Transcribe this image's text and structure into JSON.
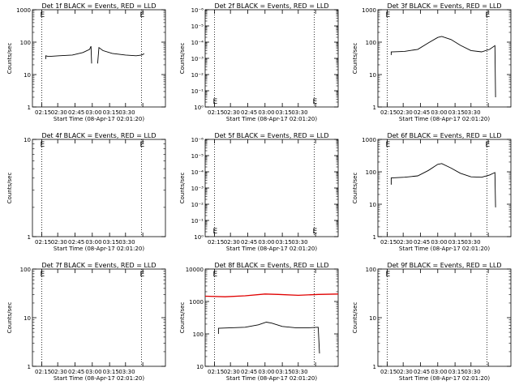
{
  "figure": {
    "xaxis_label": "Start Time (08-Apr-17 02:01:20)",
    "ylabel": "Counts/sec"
  },
  "chart_data": [
    {
      "type": "line",
      "title": "Det 1f BLACK = Events, RED = LLD",
      "scale": "log",
      "ylim": [
        1,
        1000
      ],
      "yticks": [
        "1",
        "10",
        "100",
        "1000"
      ],
      "xticks": [
        "02:15",
        "02:30",
        "02:45",
        "03:00",
        "03:15",
        "03:30"
      ],
      "markers": [
        "E",
        "E"
      ],
      "marker_pos": "top",
      "series": [
        {
          "color": "#000000",
          "values": [
            [
              0.1,
              30
            ],
            [
              0.1,
              38
            ],
            [
              0.12,
              36
            ],
            [
              0.2,
              38
            ],
            [
              0.3,
              40
            ],
            [
              0.38,
              48
            ],
            [
              0.43,
              60
            ],
            [
              0.44,
              75
            ],
            [
              0.445,
              22
            ],
            "gap",
            [
              0.49,
              22
            ],
            [
              0.5,
              68
            ],
            [
              0.53,
              55
            ],
            [
              0.6,
              45
            ],
            [
              0.7,
              40
            ],
            [
              0.78,
              38
            ],
            [
              0.82,
              40
            ],
            [
              0.84,
              44
            ]
          ]
        }
      ]
    },
    {
      "type": "line",
      "title": "Det 2f BLACK = Events, RED = LLD",
      "scale": "log",
      "ylim": [
        1,
        1000000
      ],
      "yticks": [
        "10⁰",
        "10⁻¹",
        "10⁻²",
        "10⁻³",
        "10⁻⁴",
        "10⁻⁵",
        "10⁻⁶"
      ],
      "xticks": [
        "02:15",
        "02:30",
        "02:45",
        "03:00",
        "03:15",
        "03:30"
      ],
      "markers": [
        "E",
        "E"
      ],
      "marker_pos": "bottom",
      "series": []
    },
    {
      "type": "line",
      "title": "Det 3f BLACK = Events, RED = LLD",
      "scale": "log",
      "ylim": [
        1,
        1000
      ],
      "yticks": [
        "1",
        "10",
        "100",
        "1000"
      ],
      "xticks": [
        "02:15",
        "02:30",
        "02:45",
        "03:00",
        "03:15",
        "03:30"
      ],
      "markers": [
        "E",
        "E"
      ],
      "marker_pos": "top",
      "series": [
        {
          "color": "#000000",
          "values": [
            [
              0.1,
              40
            ],
            [
              0.1,
              50
            ],
            [
              0.2,
              52
            ],
            [
              0.3,
              60
            ],
            [
              0.38,
              95
            ],
            [
              0.45,
              140
            ],
            [
              0.48,
              150
            ],
            [
              0.55,
              120
            ],
            [
              0.62,
              80
            ],
            [
              0.7,
              55
            ],
            [
              0.78,
              50
            ],
            [
              0.84,
              60
            ],
            [
              0.88,
              78
            ],
            [
              0.885,
              2
            ]
          ]
        }
      ]
    },
    {
      "type": "line",
      "title": "Det 4f BLACK = Events, RED = LLD",
      "scale": "log",
      "ylim": [
        1,
        10
      ],
      "yticks": [
        "1",
        "10"
      ],
      "xticks": [
        "02:15",
        "02:30",
        "02:45",
        "03:00",
        "03:15",
        "03:30"
      ],
      "markers": [
        "E",
        "E"
      ],
      "marker_pos": "top",
      "series": []
    },
    {
      "type": "line",
      "title": "Det 5f BLACK = Events, RED = LLD",
      "scale": "log",
      "ylim": [
        1,
        1000000
      ],
      "yticks": [
        "10⁰",
        "10⁻¹",
        "10⁻²",
        "10⁻³",
        "10⁻⁴",
        "10⁻⁵",
        "10⁻⁶"
      ],
      "xticks": [
        "02:15",
        "02:30",
        "02:45",
        "03:00",
        "03:15",
        "03:30"
      ],
      "markers": [
        "E",
        "E"
      ],
      "marker_pos": "bottom",
      "series": []
    },
    {
      "type": "line",
      "title": "Det 6f BLACK = Events, RED = LLD",
      "scale": "log",
      "ylim": [
        1,
        1000
      ],
      "yticks": [
        "1",
        "10",
        "100",
        "1000"
      ],
      "xticks": [
        "02:15",
        "02:30",
        "02:45",
        "03:00",
        "03:15",
        "03:30"
      ],
      "markers": [
        "E",
        "E"
      ],
      "marker_pos": "top",
      "series": [
        {
          "color": "#000000",
          "values": [
            [
              0.1,
              40
            ],
            [
              0.1,
              65
            ],
            [
              0.2,
              68
            ],
            [
              0.3,
              75
            ],
            [
              0.38,
              110
            ],
            [
              0.45,
              170
            ],
            [
              0.48,
              180
            ],
            [
              0.55,
              130
            ],
            [
              0.62,
              90
            ],
            [
              0.7,
              70
            ],
            [
              0.78,
              68
            ],
            [
              0.84,
              80
            ],
            [
              0.88,
              95
            ],
            [
              0.885,
              8
            ]
          ]
        }
      ]
    },
    {
      "type": "line",
      "title": "Det 7f BLACK = Events, RED = LLD",
      "scale": "log",
      "ylim": [
        1,
        100
      ],
      "yticks": [
        "1",
        "10",
        "100"
      ],
      "xticks": [
        "02:15",
        "02:30",
        "02:45",
        "03:00",
        "03:15",
        "03:30"
      ],
      "markers": [
        "E",
        "E"
      ],
      "marker_pos": "top",
      "series": []
    },
    {
      "type": "line",
      "title": "Det 8f BLACK = Events, RED = LLD",
      "scale": "log",
      "ylim": [
        10,
        10000
      ],
      "yticks": [
        "10",
        "100",
        "1000",
        "10000"
      ],
      "xticks": [
        "02:15",
        "02:30",
        "02:45",
        "03:00",
        "03:15",
        "03:30"
      ],
      "markers": [
        "E"
      ],
      "marker_pos": "top",
      "series": [
        {
          "color": "#e00000",
          "values": [
            [
              0.0,
              1450
            ],
            [
              0.15,
              1400
            ],
            [
              0.3,
              1500
            ],
            [
              0.45,
              1700
            ],
            [
              0.55,
              1650
            ],
            [
              0.7,
              1550
            ],
            [
              0.85,
              1650
            ],
            [
              1.0,
              1700
            ]
          ]
        },
        {
          "color": "#000000",
          "values": [
            [
              0.1,
              100
            ],
            [
              0.1,
              150
            ],
            [
              0.2,
              155
            ],
            [
              0.3,
              160
            ],
            [
              0.4,
              190
            ],
            [
              0.46,
              230
            ],
            [
              0.5,
              215
            ],
            [
              0.58,
              170
            ],
            [
              0.68,
              155
            ],
            [
              0.78,
              155
            ],
            [
              0.85,
              160
            ],
            [
              0.86,
              25
            ]
          ]
        }
      ]
    },
    {
      "type": "line",
      "title": "Det 9f BLACK = Events, RED = LLD",
      "scale": "log",
      "ylim": [
        1,
        100
      ],
      "yticks": [
        "1",
        "10",
        "100"
      ],
      "xticks": [
        "02:15",
        "02:30",
        "02:45",
        "03:00",
        "03:15",
        "03:30"
      ],
      "markers": [
        "E"
      ],
      "marker_pos": "top",
      "series": []
    }
  ]
}
